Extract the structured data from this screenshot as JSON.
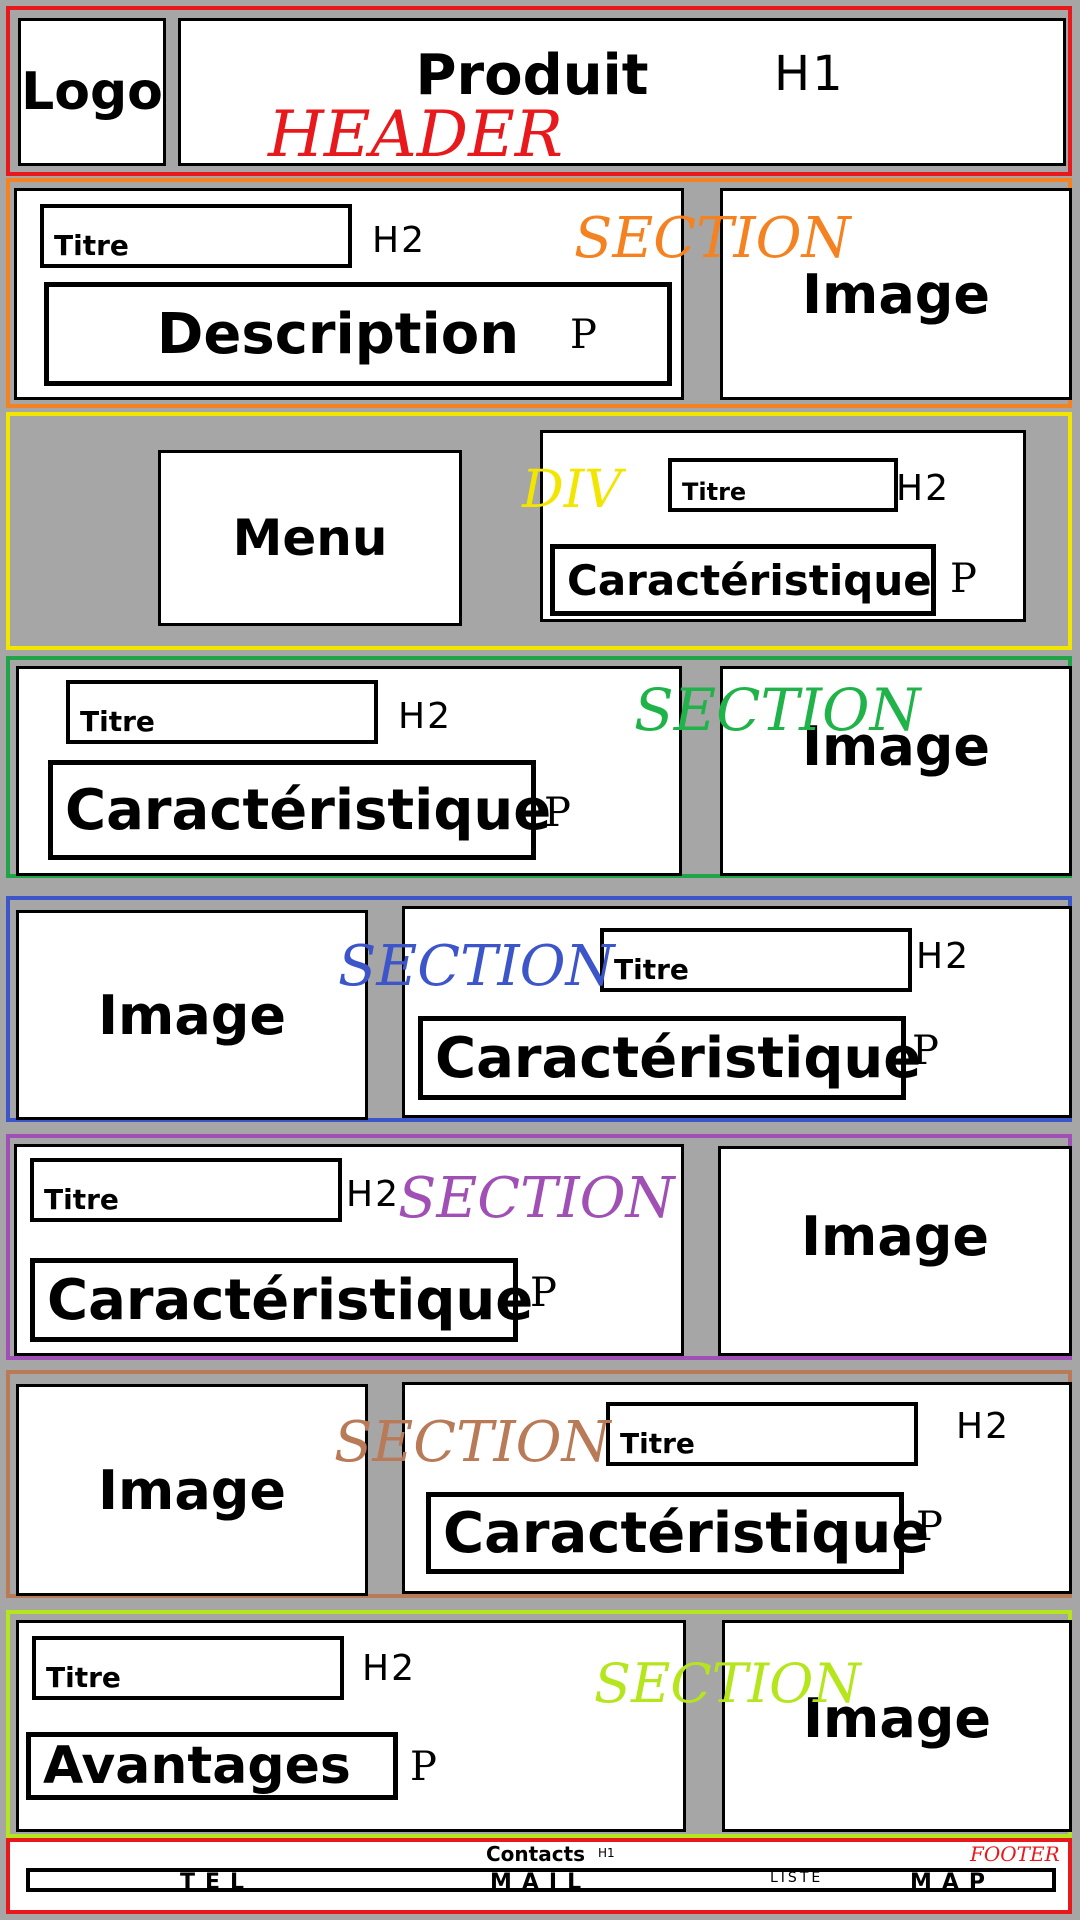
{
  "header": {
    "logo": "Logo",
    "title": "Produit",
    "title_tag": "H1",
    "label": "HEADER",
    "label_color": "#e8191c",
    "border_color": "#e8191c"
  },
  "section1": {
    "titre": "Titre",
    "titre_tag": "H2",
    "description": "Description",
    "desc_tag": "P",
    "image": "Image",
    "label": "SECTION",
    "label_color": "#f58220",
    "border_color": "#f58220"
  },
  "div_block": {
    "menu": "Menu",
    "label": "DIV",
    "titre": "Titre",
    "titre_tag": "H2",
    "carac": "Caractéristique",
    "carac_tag": "P",
    "label_color": "#f2e600",
    "border_color": "#f2e600"
  },
  "section2": {
    "titre": "Titre",
    "titre_tag": "H2",
    "carac": "Caractéristique",
    "carac_tag": "P",
    "image": "Image",
    "label": "SECTION",
    "label_color": "#1fb34a",
    "border_color": "#1fa447"
  },
  "section3": {
    "titre": "Titre",
    "titre_tag": "H2",
    "carac": "Caractéristique",
    "carac_tag": "P",
    "image": "Image",
    "label": "SECTION",
    "label_color": "#3c55c8",
    "border_color": "#3c55c8"
  },
  "section4": {
    "titre": "Titre",
    "titre_tag": "H2",
    "carac": "Caractéristique",
    "carac_tag": "P",
    "image": "Image",
    "label": "SECTION",
    "label_color": "#a04fb5",
    "border_color": "#a04fb5"
  },
  "section5": {
    "titre": "Titre",
    "titre_tag": "H2",
    "carac": "Caractéristique",
    "carac_tag": "P",
    "image": "Image",
    "label": "SECTION",
    "label_color": "#b97a57",
    "border_color": "#b97a57"
  },
  "section6": {
    "titre": "Titre",
    "titre_tag": "H2",
    "avantages": "Avantages",
    "avantages_tag": "P",
    "image": "Image",
    "label": "SECTION",
    "label_color": "#b5e61d",
    "border_color": "#b5e61d"
  },
  "footer": {
    "contacts": "Contacts",
    "contacts_tag": "H1",
    "label": "FOOTER",
    "label_color": "#e8191c",
    "border_color": "#e8191c",
    "items": [
      "TEL",
      "MAIL",
      "LISTE",
      "MAP"
    ]
  }
}
